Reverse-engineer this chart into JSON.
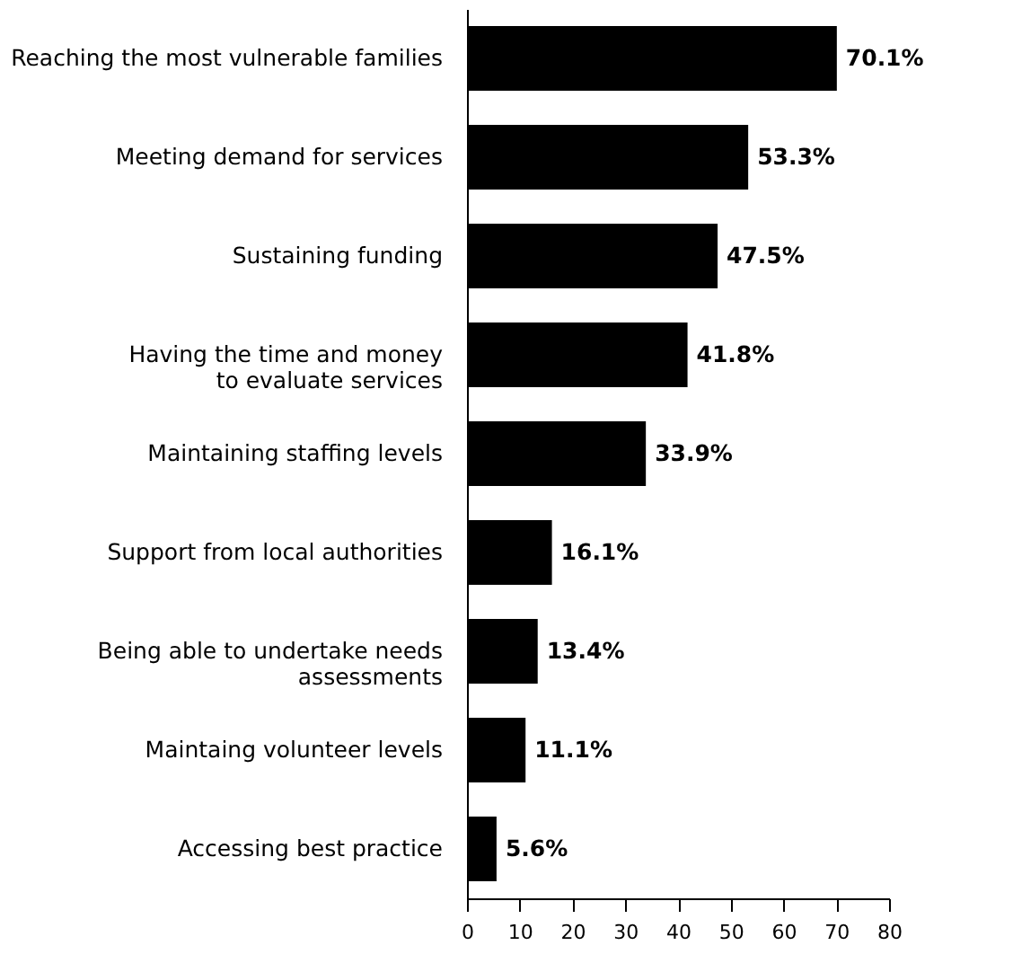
{
  "chart_data": {
    "type": "bar",
    "orientation": "horizontal",
    "categories": [
      "Reaching the most vulnerable families",
      "Meeting demand for services",
      "Sustaining funding",
      "Having the time and money\nto evaluate services",
      "Maintaining staffing levels",
      "Support from local authorities",
      "Being able to undertake needs\nassessments",
      "Maintaing volunteer levels",
      "Accessing best practice"
    ],
    "values": [
      70.1,
      53.3,
      47.5,
      41.8,
      33.9,
      16.1,
      13.4,
      11.1,
      5.6
    ],
    "value_labels": [
      "70.1%",
      "53.3%",
      "47.5%",
      "41.8%",
      "33.9%",
      "16.1%",
      "13.4%",
      "11.1%",
      "5.6%"
    ],
    "color": "#000000",
    "xlim": [
      0,
      80
    ],
    "xticks": [
      0,
      10,
      20,
      30,
      40,
      50,
      60,
      70,
      80
    ],
    "grid": false
  }
}
